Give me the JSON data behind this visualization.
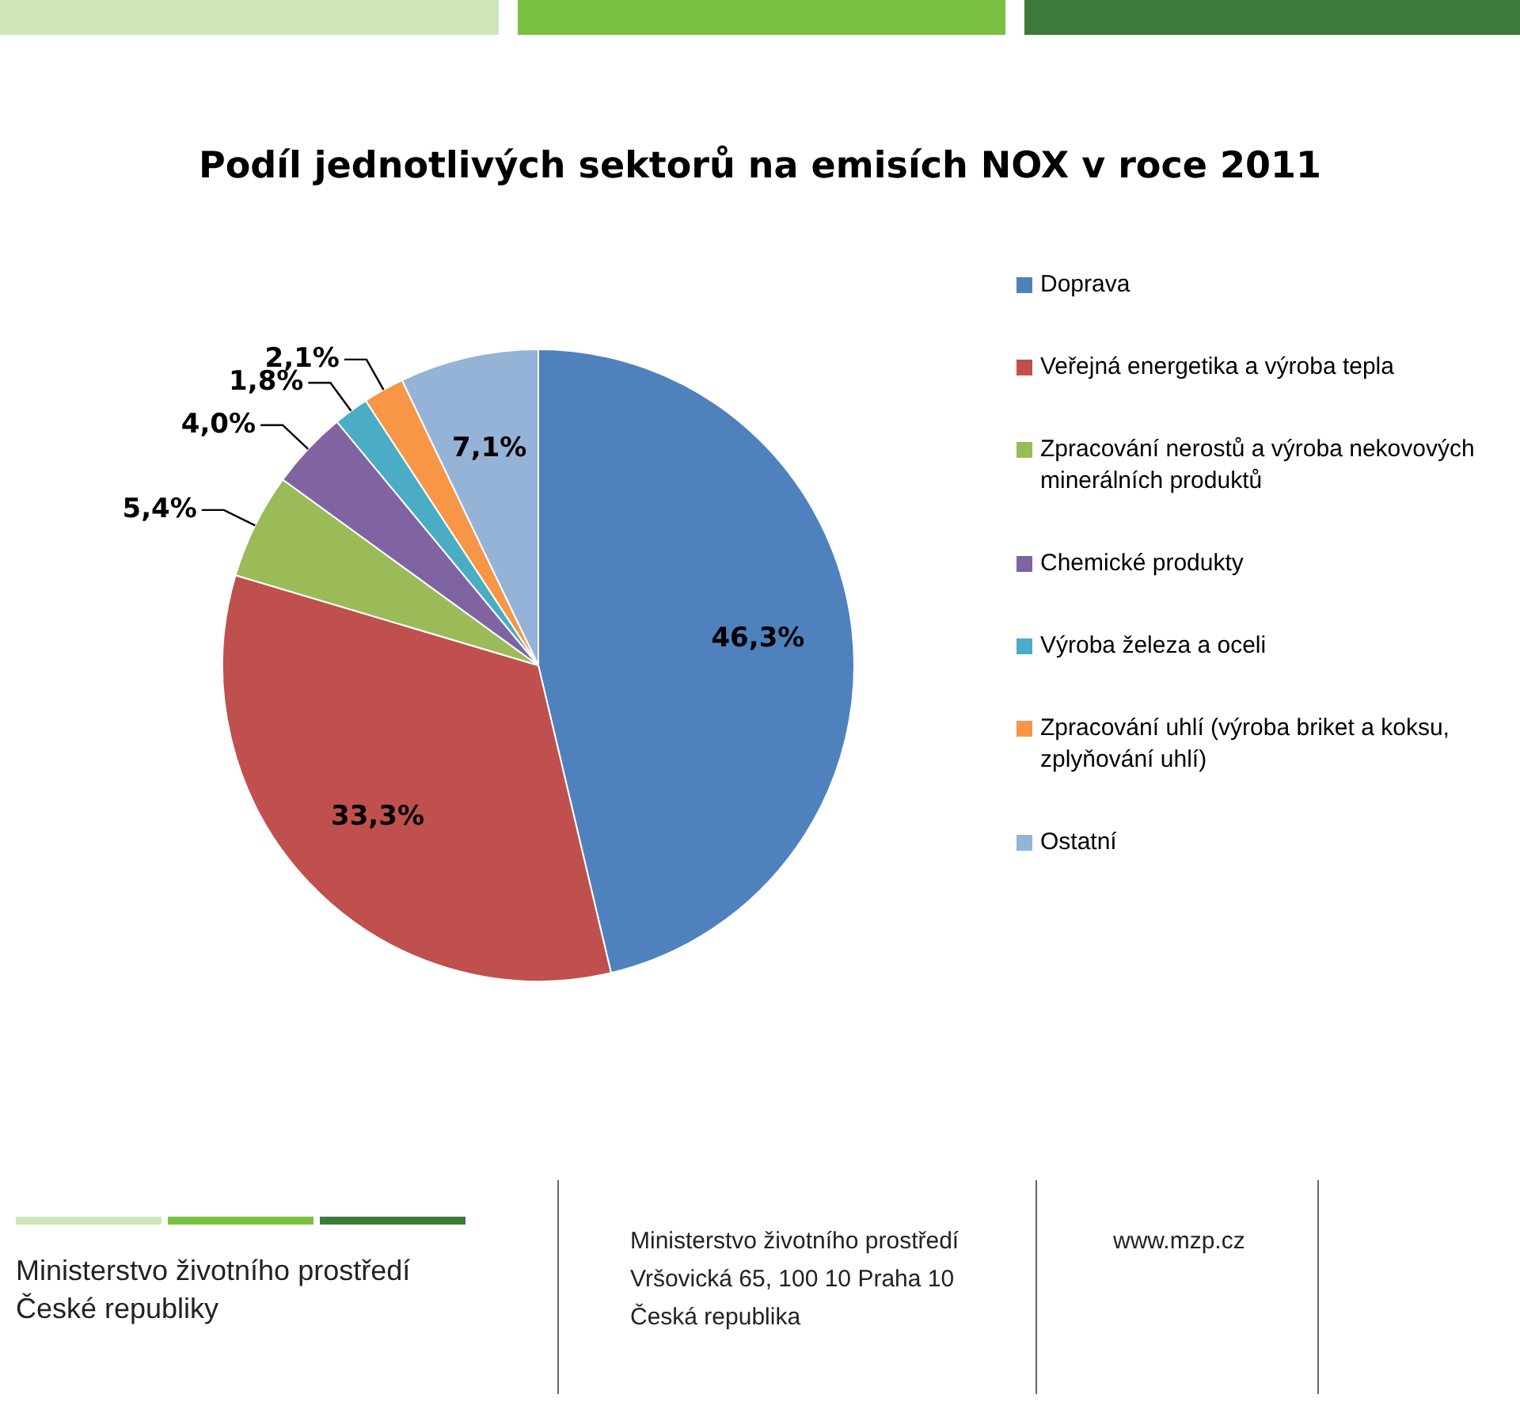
{
  "chart_data": {
    "type": "pie",
    "title": "Podíl jednotlivých sektorů na emisích NOX v roce 2011",
    "categories": [
      "Doprava",
      "Veřejná energetika a výroba tepla",
      "Zpracování nerostů a výroba nekovových minerálních produktů",
      "Chemické produkty",
      "Výroba železa a oceli",
      "Zpracování uhlí (výroba briket a koksu, zplyňování uhlí)",
      "Ostatní"
    ],
    "values": [
      46.3,
      33.3,
      5.4,
      4.0,
      1.8,
      2.1,
      7.1
    ],
    "colors": [
      "#4f81bd",
      "#c0504d",
      "#9bbb59",
      "#8064a2",
      "#4bacc6",
      "#f79646",
      "#95b3d7"
    ],
    "value_labels": [
      "46,3%",
      "33,3%",
      "5,4%",
      "4,0%",
      "1,8%",
      "2,1%",
      "7,1%"
    ],
    "legend": "right",
    "annotations": [
      "Ministerstvo životního prostředí\nČeské republiky",
      "Ministerstvo životního prostředí\nVršovická 65, 100 10  Praha 10\nČeská republika",
      "www.mzp.cz"
    ]
  }
}
